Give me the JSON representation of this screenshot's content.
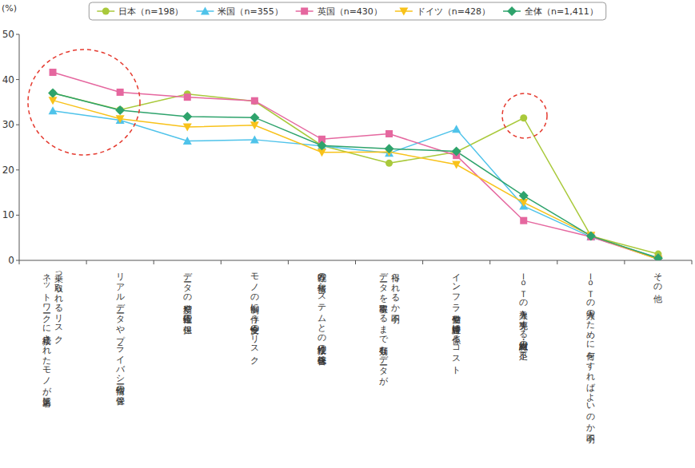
{
  "chart_data": {
    "type": "line",
    "y_label": "(%)",
    "categories": [
      "ネットワークに接続されたモノが第三者に\n乗っ取られるリスク",
      "リアルデータやプライバシー情報の保管",
      "データの精度や正確性の担保",
      "モノの制御に伴う安全性のリスク",
      "既存の情報システムとの接続性の確保・統合",
      "データを取得するまで有効なデータが\n得られるか不明",
      "インフラ整備や維持管理に係るコスト",
      "ＩｏＴの導入を先導する組織・人材の不足",
      "ＩｏＴの導入のために何をすればよいのか不明",
      "その他"
    ],
    "series": [
      {
        "name": "日本（n=198）",
        "color": "#a9c93b",
        "marker": "circle",
        "values": [
          37.0,
          33.3,
          36.8,
          35.2,
          25.4,
          21.5,
          24.0,
          31.5,
          5.4,
          1.4
        ]
      },
      {
        "name": "米国（n=355）",
        "color": "#4fc3ea",
        "marker": "triangle",
        "values": [
          33.1,
          31.0,
          26.4,
          26.7,
          25.3,
          23.7,
          29.0,
          12.0,
          5.2,
          0.6
        ]
      },
      {
        "name": "英国（n=430）",
        "color": "#e5679f",
        "marker": "square",
        "values": [
          41.6,
          37.2,
          36.1,
          35.3,
          26.8,
          28.0,
          23.2,
          8.8,
          5.2,
          0.3
        ]
      },
      {
        "name": "ドイツ（n=428）",
        "color": "#f8c21a",
        "marker": "triangle-down",
        "values": [
          35.4,
          31.3,
          29.5,
          29.9,
          23.9,
          24.0,
          21.2,
          12.8,
          5.5,
          0.2
        ]
      },
      {
        "name": "全体（n=1,411）",
        "color": "#2ea36c",
        "marker": "diamond",
        "values": [
          37.0,
          33.2,
          31.8,
          31.6,
          25.4,
          24.7,
          24.1,
          14.3,
          5.4,
          0.5
        ]
      }
    ],
    "ylim": [
      0,
      50
    ],
    "yticks": [
      0,
      10,
      20,
      30,
      40,
      50
    ],
    "grid": false,
    "legend": "top"
  }
}
